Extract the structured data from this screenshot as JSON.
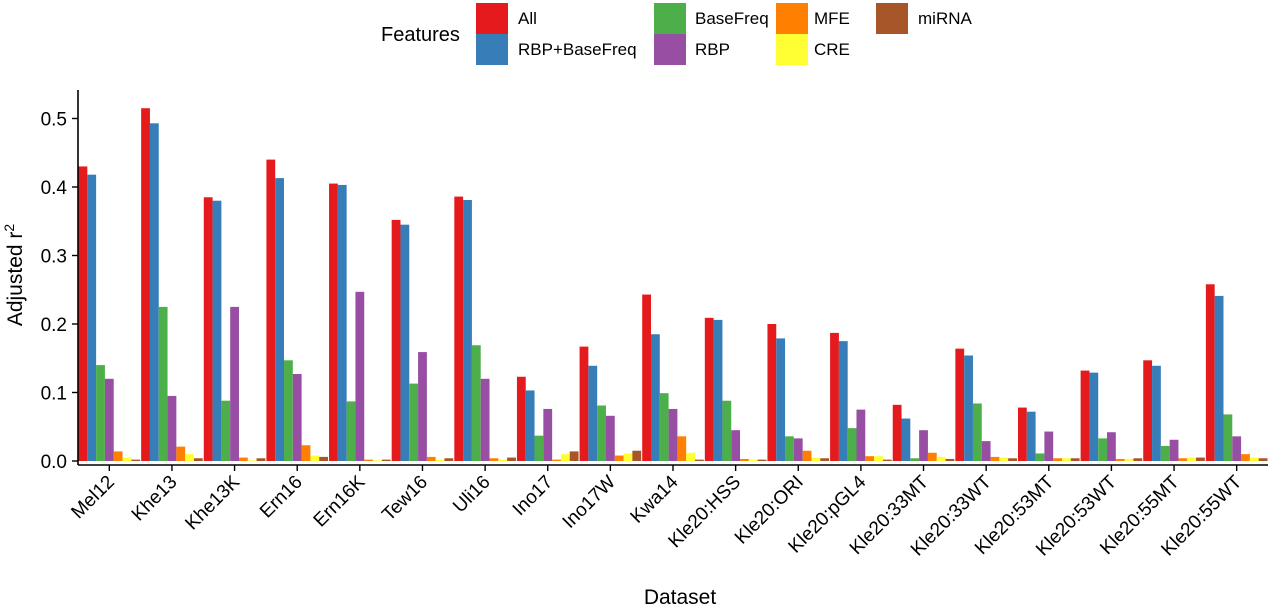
{
  "chart_data": {
    "type": "bar",
    "title": "",
    "xlabel": "Dataset",
    "ylabel": "Adjusted r",
    "ylabel_superscript": "2",
    "ylim": [
      0,
      0.54
    ],
    "yticks": [
      "0.0",
      "0.1",
      "0.2",
      "0.3",
      "0.4",
      "0.5"
    ],
    "ytick_values": [
      0,
      0.1,
      0.2,
      0.3,
      0.4,
      0.5
    ],
    "grid": false,
    "legend": {
      "title": "Features",
      "placement": "top"
    },
    "categories": [
      "Mel12",
      "Khe13",
      "Khe13K",
      "Ern16",
      "Ern16K",
      "Tew16",
      "Uli16",
      "Ino17",
      "Ino17W",
      "Kwa14",
      "Kle20:HSS",
      "Kle20:ORI",
      "Kle20:pGL4",
      "Kle20:33MT",
      "Kle20:33WT",
      "Kle20:53MT",
      "Kle20:53WT",
      "Kle20:55MT",
      "Kle20:55WT"
    ],
    "series": [
      {
        "name": "All",
        "color": "#e41a1c",
        "values": [
          0.43,
          0.515,
          0.385,
          0.44,
          0.405,
          0.352,
          0.386,
          0.123,
          0.167,
          0.243,
          0.209,
          0.2,
          0.187,
          0.082,
          0.164,
          0.078,
          0.132,
          0.147,
          0.258
        ]
      },
      {
        "name": "RBP+BaseFreq",
        "color": "#377eb8",
        "values": [
          0.418,
          0.493,
          0.38,
          0.413,
          0.403,
          0.345,
          0.381,
          0.103,
          0.139,
          0.185,
          0.206,
          0.179,
          0.175,
          0.062,
          0.154,
          0.072,
          0.129,
          0.139,
          0.241
        ]
      },
      {
        "name": "BaseFreq",
        "color": "#4daf4a",
        "values": [
          0.14,
          0.225,
          0.088,
          0.147,
          0.087,
          0.113,
          0.169,
          0.037,
          0.081,
          0.099,
          0.088,
          0.036,
          0.048,
          0.004,
          0.084,
          0.011,
          0.033,
          0.022,
          0.068
        ]
      },
      {
        "name": "RBP",
        "color": "#984ea3",
        "values": [
          0.12,
          0.095,
          0.225,
          0.127,
          0.247,
          0.159,
          0.12,
          0.076,
          0.066,
          0.076,
          0.045,
          0.033,
          0.075,
          0.045,
          0.029,
          0.043,
          0.042,
          0.031,
          0.036
        ]
      },
      {
        "name": "MFE",
        "color": "#ff7f00",
        "values": [
          0.014,
          0.021,
          0.005,
          0.023,
          0.002,
          0.006,
          0.004,
          0.002,
          0.008,
          0.036,
          0.003,
          0.015,
          0.007,
          0.012,
          0.006,
          0.004,
          0.003,
          0.004,
          0.01
        ]
      },
      {
        "name": "CRE",
        "color": "#ffff33",
        "values": [
          0.005,
          0.01,
          0.001,
          0.008,
          0.001,
          0.002,
          0.002,
          0.01,
          0.011,
          0.012,
          0.002,
          0.005,
          0.007,
          0.006,
          0.005,
          0.004,
          0.003,
          0.005,
          0.005
        ]
      },
      {
        "name": "miRNA",
        "color": "#a65628",
        "values": [
          0.002,
          0.004,
          0.004,
          0.006,
          0.002,
          0.004,
          0.005,
          0.014,
          0.015,
          0.002,
          0.002,
          0.004,
          0.002,
          0.003,
          0.004,
          0.004,
          0.004,
          0.005,
          0.004
        ]
      }
    ]
  }
}
